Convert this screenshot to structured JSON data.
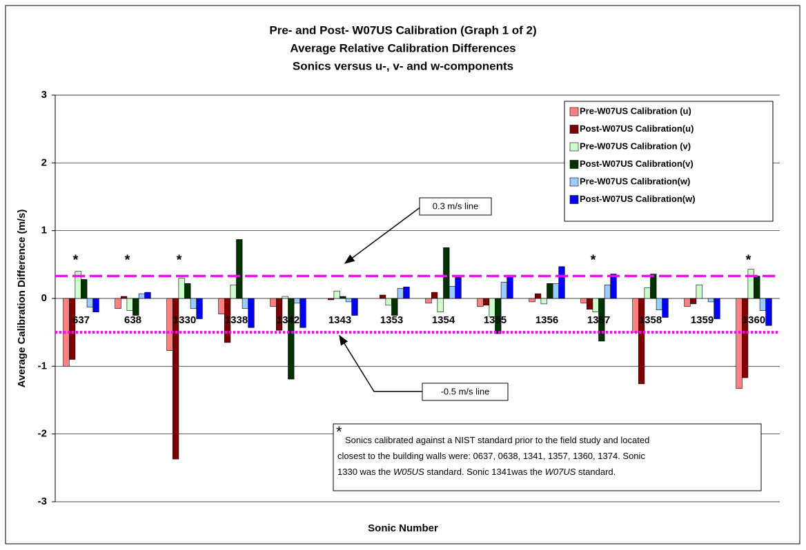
{
  "chart_data": {
    "type": "bar",
    "title": [
      "Pre- and Post- W07US Calibration (Graph 1 of 2)",
      "Average Relative Calibration Differences",
      "Sonics versus u-, v- and w-components"
    ],
    "x_label": "Sonic Number",
    "y_label": "Average Calibration Difference (m/s)",
    "categories": [
      "637",
      "638",
      "1330",
      "1338",
      "1342",
      "1343",
      "1353",
      "1354",
      "1355",
      "1356",
      "1357",
      "1358",
      "1359",
      "1360"
    ],
    "series": [
      {
        "name": "Pre-W07US Calibration (u)",
        "color": "#ff8080",
        "values": [
          -1.0,
          -0.15,
          -0.77,
          -0.23,
          -0.12,
          0.0,
          0.0,
          -0.07,
          -0.12,
          -0.05,
          -0.07,
          -0.5,
          -0.12,
          -1.33
        ]
      },
      {
        "name": "Post-W07US Calibration(u)",
        "color": "#800000",
        "values": [
          -0.9,
          0.03,
          -2.37,
          -0.65,
          -0.47,
          -0.02,
          0.05,
          0.09,
          -0.1,
          0.07,
          -0.16,
          -1.26,
          -0.08,
          -1.17
        ]
      },
      {
        "name": "Pre-W07US Calibration (v)",
        "color": "#ccffcc",
        "values": [
          0.4,
          -0.18,
          0.3,
          0.2,
          0.03,
          0.11,
          -0.1,
          -0.2,
          -0.27,
          -0.08,
          -0.2,
          0.16,
          0.2,
          0.43
        ]
      },
      {
        "name": "Post-W07US Calibration(v)",
        "color": "#003300",
        "values": [
          0.28,
          -0.25,
          0.22,
          0.87,
          -1.19,
          0.03,
          -0.25,
          0.75,
          -0.52,
          0.22,
          -0.63,
          0.36,
          0.0,
          0.33
        ]
      },
      {
        "name": "Pre-W07US Calibration(w)",
        "color": "#99ccff",
        "values": [
          -0.13,
          0.07,
          -0.15,
          -0.15,
          -0.07,
          -0.05,
          0.15,
          0.18,
          0.24,
          0.22,
          0.2,
          -0.17,
          -0.05,
          -0.18
        ]
      },
      {
        "name": "Post-W07US Calibration(w)",
        "color": "#0000ff",
        "values": [
          -0.2,
          0.09,
          -0.3,
          -0.43,
          -0.43,
          -0.25,
          0.17,
          0.31,
          0.33,
          0.47,
          0.36,
          -0.28,
          -0.3,
          -0.4
        ]
      }
    ],
    "ylim": [
      -3,
      3
    ],
    "yticks": [
      -3,
      -2,
      -1,
      0,
      1,
      2,
      3
    ],
    "grid": true,
    "legend": "top-right",
    "reference_lines": [
      {
        "value": 0.33,
        "label": "0.3 m/s line",
        "color": "#ff00ff",
        "style": "dashed"
      },
      {
        "value": -0.5,
        "label": "-0.5 m/s line",
        "color": "#ff00ff",
        "style": "dotted"
      }
    ],
    "markers": [
      {
        "text": "*",
        "category": "637"
      },
      {
        "text": "*",
        "category": "638"
      },
      {
        "text": "*",
        "category": "1330"
      },
      {
        "text": "*",
        "category": "1357"
      },
      {
        "text": "*",
        "category": "1360"
      }
    ],
    "note": {
      "symbol": "*",
      "lines": [
        [
          {
            "text": "Sonics calibrated against a NIST standard prior to the field study and located",
            "italic": false
          }
        ],
        [
          {
            "text": "closest to the building walls were:  0637, 0638, 1341, 1357, 1360, 1374.  Sonic",
            "italic": false
          }
        ],
        [
          {
            "text": "1330 was the ",
            "italic": false
          },
          {
            "text": "W05US",
            "italic": true
          },
          {
            "text": " standard.  Sonic 1341was the ",
            "italic": false
          },
          {
            "text": "W07US",
            "italic": true
          },
          {
            "text": " standard.",
            "italic": false
          }
        ]
      ]
    }
  }
}
